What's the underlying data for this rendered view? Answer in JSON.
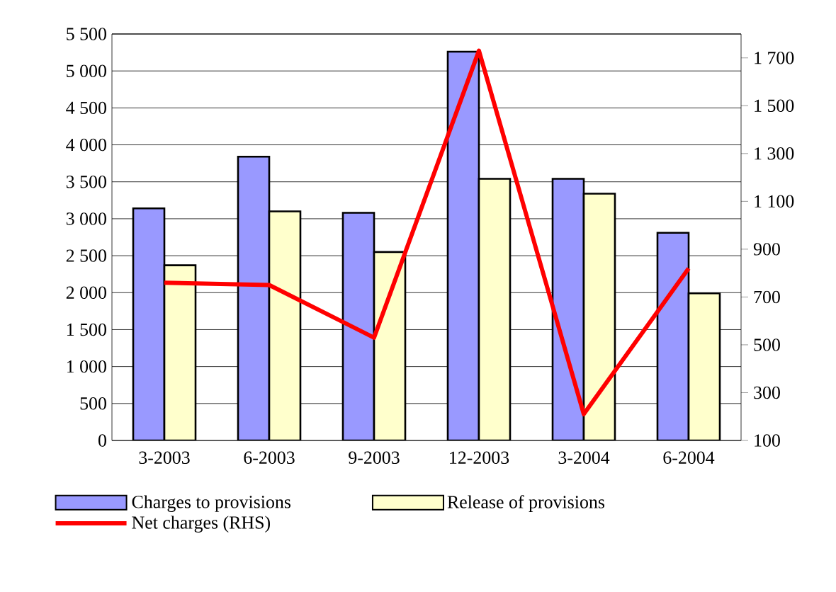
{
  "chart_data": {
    "type": "bar",
    "categories": [
      "3-2003",
      "6-2003",
      "9-2003",
      "12-2003",
      "3-2004",
      "6-2004"
    ],
    "series": [
      {
        "name": "Charges to provisions",
        "color": "#9999ff",
        "values": [
          3140,
          3840,
          3080,
          5260,
          3540,
          2810
        ]
      },
      {
        "name": "Release of provisions",
        "color": "#ffffcc",
        "values": [
          2370,
          3100,
          2550,
          3540,
          3340,
          1990
        ]
      },
      {
        "name": "Net charges (RHS)",
        "type": "line",
        "axis": "y2",
        "color": "#ff0000",
        "values": [
          760,
          750,
          530,
          1730,
          210,
          820
        ]
      }
    ],
    "ylim": [
      0,
      5500
    ],
    "yticks": [
      0,
      {
        "value": 500,
        "label": "500"
      },
      {
        "value": 1000,
        "label": "1 000"
      },
      {
        "value": 1500,
        "label": "1 500"
      },
      {
        "value": 2000,
        "label": "2 000"
      },
      {
        "value": 2500,
        "label": "2 500"
      },
      {
        "value": 3000,
        "label": "3 000"
      },
      {
        "value": 3500,
        "label": "3 500"
      },
      {
        "value": 4000,
        "label": "4 000"
      },
      {
        "value": 4500,
        "label": "4 500"
      },
      {
        "value": 5000,
        "label": "5 000"
      },
      {
        "value": 5500,
        "label": "5 500"
      }
    ],
    "y2lim": [
      100,
      1800
    ],
    "y2ticks": [
      100,
      300,
      500,
      700,
      900,
      {
        "value": 1100,
        "label": "1 100"
      },
      {
        "value": 1300,
        "label": "1 300"
      },
      {
        "value": 1500,
        "label": "1 500"
      },
      {
        "value": 1700,
        "label": "1 700"
      }
    ],
    "grid": "y",
    "legend": "bottom"
  }
}
